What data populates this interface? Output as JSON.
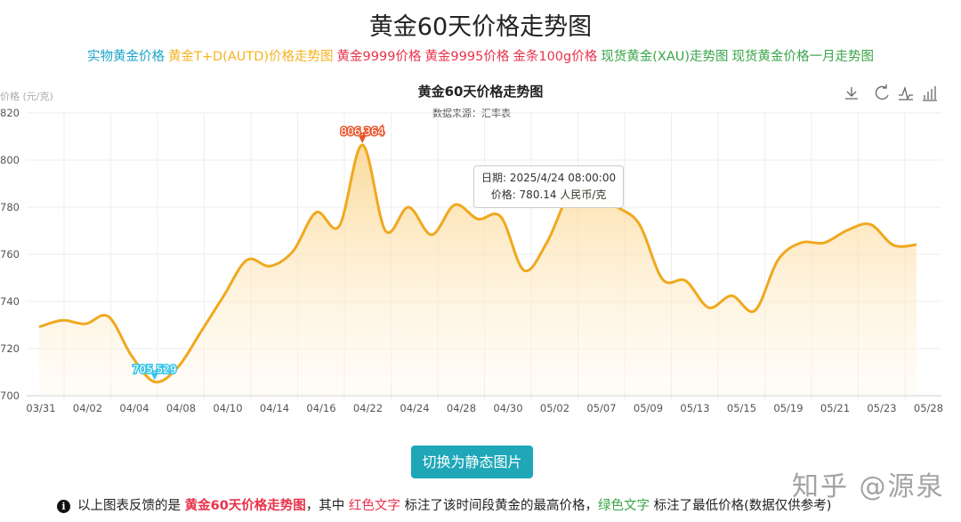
{
  "page_title": "黄金60天价格走势图",
  "links": [
    {
      "label": "实物黄金价格",
      "color": "#1aa3c9"
    },
    {
      "label": "黄金T+D(AUTD)价格走势图",
      "color": "#f5b322"
    },
    {
      "label": "黄金9999价格",
      "color": "#e8334a"
    },
    {
      "label": "黄金9995价格",
      "color": "#e8334a"
    },
    {
      "label": "金条100g价格",
      "color": "#e8334a"
    },
    {
      "label": "现货黄金(XAU)走势图",
      "color": "#3aa64a"
    },
    {
      "label": "现货黄金价格一月走势图",
      "color": "#3aa64a"
    }
  ],
  "toolbox": {
    "icons": [
      "download-icon",
      "refresh-icon",
      "line-chart-icon",
      "bar-chart-icon"
    ]
  },
  "tooltip": {
    "date": "日期: 2025/4/24 08:00:00",
    "price": "价格: 780.14 人民币/克"
  },
  "chart_data": {
    "type": "area",
    "title": "黄金60天价格走势图",
    "subtitle": "数据来源：汇率表",
    "ylabel": "价格 (元/克)",
    "xlabel": "",
    "ylim": [
      700,
      820
    ],
    "yticks": [
      700,
      720,
      740,
      760,
      780,
      800,
      820
    ],
    "grid": true,
    "color": "#f0a81e",
    "x_tick_labels": [
      "03/31",
      "04/02",
      "04/04",
      "04/08",
      "04/10",
      "04/14",
      "04/16",
      "04/22",
      "04/24",
      "04/28",
      "04/30",
      "05/02",
      "05/07",
      "05/09",
      "05/13",
      "05/15",
      "05/19",
      "05/21",
      "05/23",
      "05/28"
    ],
    "values": [
      729.2,
      732,
      730.5,
      733.6,
      717,
      705.9,
      712,
      727,
      742.5,
      757.6,
      755,
      761.4,
      777.8,
      772,
      806.4,
      770,
      780,
      768.3,
      781,
      775,
      775.9,
      753.2,
      765.2,
      786,
      786.6,
      780.3,
      772.7,
      749.4,
      748.8,
      737.4,
      742.4,
      736.1,
      757.6,
      764.9,
      764.9,
      770.2,
      772.7,
      763.9,
      764.1
    ],
    "max_label": "806.364",
    "min_label": "705.529",
    "max_color": "#e8552b",
    "min_color": "#35c4e8"
  },
  "button": {
    "label": "切换为静态图片"
  },
  "note": {
    "info_icon": "i",
    "p1": "以上图表反馈的是 ",
    "p2": "黄金60天价格走势图",
    "p3": "，其中 ",
    "p4": "红色文字",
    "p5": " 标注了该时间段黄金的最高价格，",
    "p6": "绿色文字",
    "p7": " 标注了最低价格(数据仅供参考)"
  },
  "watermark": "知乎 @源泉"
}
